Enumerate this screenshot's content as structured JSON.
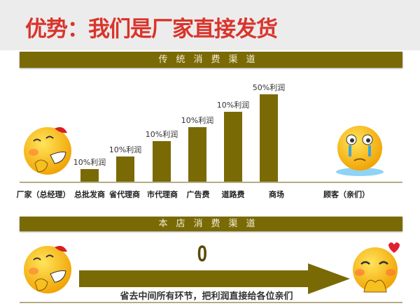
{
  "header": {
    "title": "优势：我们是厂家直接发货"
  },
  "traditional": {
    "banner": "传统消费渠道",
    "start_label": "厂家（总经理）",
    "end_label": "顾客（亲们）",
    "stages": [
      {
        "name": "总批发商",
        "profit": "10%利润"
      },
      {
        "name": "省代理商",
        "profit": "10%利润"
      },
      {
        "name": "市代理商",
        "profit": "10%利润"
      },
      {
        "name": "广告费",
        "profit": "10%利润"
      },
      {
        "name": "道路费",
        "profit": "10%利润"
      },
      {
        "name": "商场",
        "profit": "50%利润"
      }
    ]
  },
  "direct": {
    "banner": "本店消费渠道",
    "value": "0",
    "slogan": "省去中间所有环节，把利润直接给各位亲们"
  },
  "colors": {
    "accent": "#7a6a06",
    "title": "#d9342b",
    "emoji": "#f5b800"
  },
  "icons": [
    "grinning-emoji-icon",
    "crying-emoji-icon",
    "happy-emoji-icon",
    "arrow-right-icon"
  ]
}
